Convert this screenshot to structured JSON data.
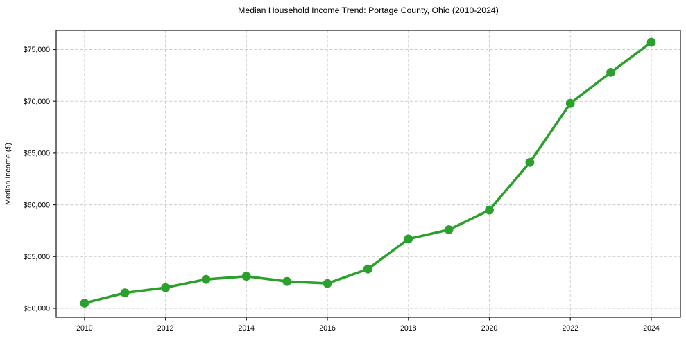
{
  "chart_data": {
    "type": "line",
    "title": "Median Household Income Trend: Portage County, Ohio (2010-2024)",
    "xlabel": "",
    "ylabel": "Median Income ($)",
    "x": [
      2010,
      2011,
      2012,
      2013,
      2014,
      2015,
      2016,
      2017,
      2018,
      2019,
      2020,
      2021,
      2022,
      2023,
      2024
    ],
    "values": [
      50500,
      51500,
      52000,
      52800,
      53100,
      52600,
      52400,
      53800,
      56700,
      57600,
      59500,
      64100,
      69800,
      72800,
      75700
    ],
    "xticks": {
      "positions": [
        2010,
        2012,
        2014,
        2016,
        2018,
        2020,
        2022,
        2024
      ],
      "labels": [
        "2010",
        "2012",
        "2014",
        "2016",
        "2018",
        "2020",
        "2022",
        "2024"
      ]
    },
    "yticks": {
      "positions": [
        50000,
        55000,
        60000,
        65000,
        70000,
        75000
      ],
      "labels": [
        "$50,000",
        "$55,000",
        "$60,000",
        "$65,000",
        "$70,000",
        "$75,000"
      ]
    },
    "xlim": [
      2009.3,
      2024.72
    ],
    "ylim": [
      49130,
      76840
    ],
    "grid": true,
    "grid_style": "dashed",
    "legend_position": "none",
    "marker": "circle",
    "colors": {
      "line": "#2ca02c",
      "grid": "#cccccc",
      "spine": "#262626",
      "text": "#000000",
      "background": "#ffffff"
    }
  }
}
